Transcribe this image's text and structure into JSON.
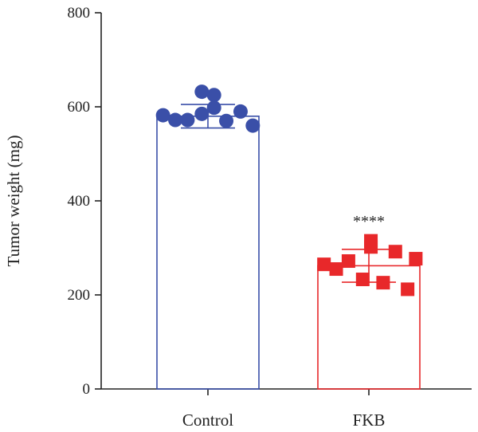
{
  "chart_data": {
    "type": "bar",
    "title": "",
    "xlabel": "",
    "ylabel": "Tumor weight (mg)",
    "ylim": [
      0,
      800
    ],
    "yticks": [
      0,
      200,
      400,
      600,
      800
    ],
    "grid": false,
    "categories": [
      "Control",
      "FKB"
    ],
    "bars": [
      {
        "category": "Control",
        "mean": 580,
        "error": 25,
        "color": "#3a4fa8",
        "marker": "circle",
        "significance": "",
        "points": [
          {
            "x": -0.44,
            "y": 582
          },
          {
            "x": -0.32,
            "y": 572
          },
          {
            "x": -0.2,
            "y": 572
          },
          {
            "x": -0.06,
            "y": 585
          },
          {
            "x": -0.06,
            "y": 632
          },
          {
            "x": 0.06,
            "y": 625
          },
          {
            "x": 0.06,
            "y": 598
          },
          {
            "x": 0.18,
            "y": 570
          },
          {
            "x": 0.32,
            "y": 590
          },
          {
            "x": 0.44,
            "y": 560
          }
        ]
      },
      {
        "category": "FKB",
        "mean": 262,
        "error": 35,
        "color": "#e8282a",
        "marker": "square",
        "significance": "****",
        "points": [
          {
            "x": -0.44,
            "y": 265
          },
          {
            "x": -0.32,
            "y": 255
          },
          {
            "x": -0.2,
            "y": 272
          },
          {
            "x": -0.06,
            "y": 233
          },
          {
            "x": 0.02,
            "y": 315
          },
          {
            "x": 0.02,
            "y": 302
          },
          {
            "x": 0.14,
            "y": 226
          },
          {
            "x": 0.26,
            "y": 292
          },
          {
            "x": 0.38,
            "y": 212
          },
          {
            "x": 0.46,
            "y": 277
          }
        ]
      }
    ]
  }
}
